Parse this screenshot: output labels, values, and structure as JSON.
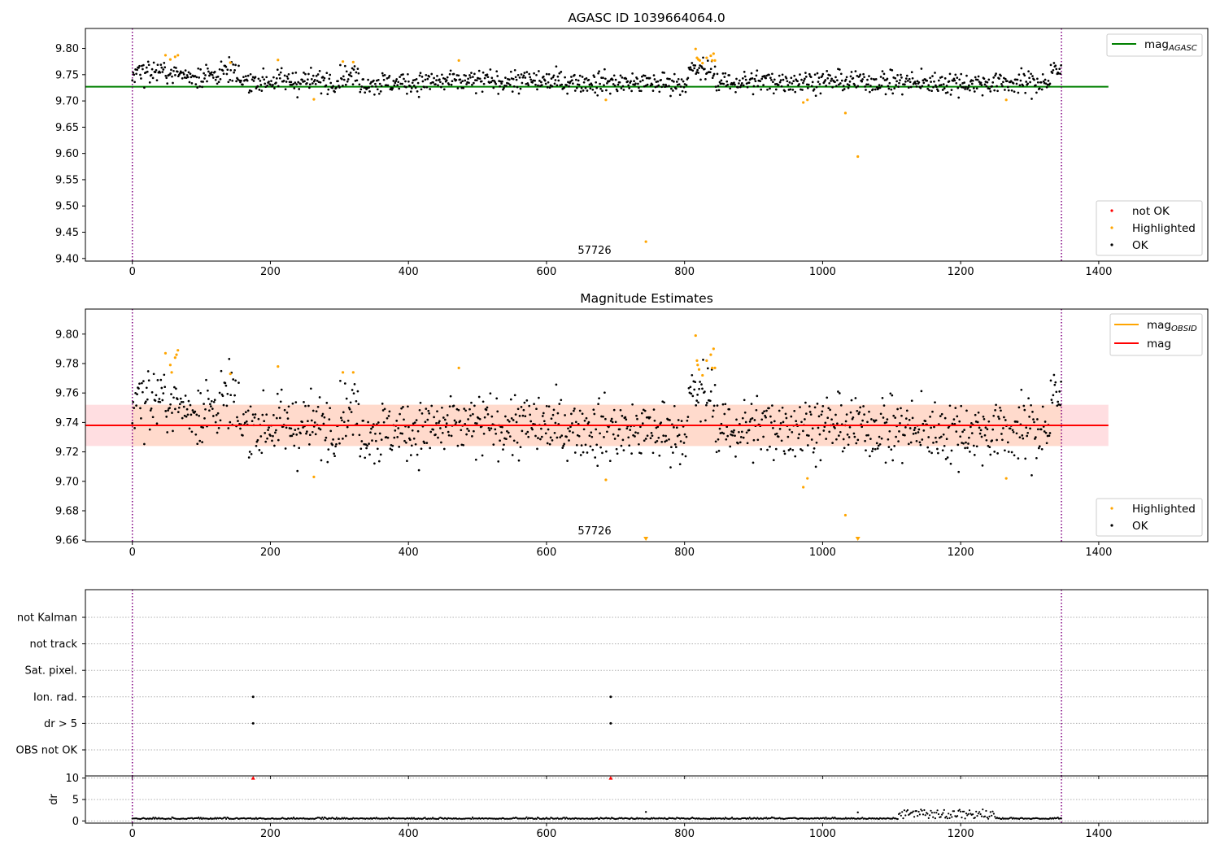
{
  "chart_data": [
    {
      "type": "scatter",
      "title": "AGASC ID 1039664064.0",
      "xlim": [
        -68,
        1558
      ],
      "ylim": [
        9.395,
        9.838
      ],
      "xticks": [
        0,
        200,
        400,
        600,
        800,
        1000,
        1200,
        1400
      ],
      "yticks": [
        "9.40",
        "9.45",
        "9.50",
        "9.55",
        "9.60",
        "9.65",
        "9.70",
        "9.75",
        "9.80"
      ],
      "obs_boundaries": [
        0,
        1346
      ],
      "hlines": [
        {
          "name": "mag_AGASC",
          "value": 9.727,
          "color": "#008000",
          "xrange": [
            -68,
            1414
          ]
        }
      ],
      "legend_lines": [
        {
          "label": "mag",
          "sub": "AGASC",
          "color": "#008000"
        }
      ],
      "legend_points": [
        {
          "label": "not OK",
          "color": "#ff0000"
        },
        {
          "label": "Highlighted",
          "color": "#ffa500"
        },
        {
          "label": "OK",
          "color": "#000000"
        }
      ],
      "annotation": {
        "text": "57726",
        "x": 640,
        "y": 9.412
      },
      "highlighted": [
        [
          48,
          9.787
        ],
        [
          55,
          9.779
        ],
        [
          62,
          9.784
        ],
        [
          66,
          9.787
        ],
        [
          142,
          9.773
        ],
        [
          211,
          9.778
        ],
        [
          263,
          9.703
        ],
        [
          305,
          9.775
        ],
        [
          320,
          9.774
        ],
        [
          473,
          9.777
        ],
        [
          686,
          9.702
        ],
        [
          744,
          9.432
        ],
        [
          816,
          9.799
        ],
        [
          818,
          9.782
        ],
        [
          820,
          9.779
        ],
        [
          822,
          9.777
        ],
        [
          826,
          9.772
        ],
        [
          832,
          9.782
        ],
        [
          838,
          9.786
        ],
        [
          842,
          9.79
        ],
        [
          840,
          9.777
        ],
        [
          844,
          9.777
        ],
        [
          972,
          9.697
        ],
        [
          978,
          9.702
        ],
        [
          1033,
          9.677
        ],
        [
          1051,
          9.594
        ],
        [
          1266,
          9.702
        ]
      ]
    },
    {
      "type": "scatter",
      "title": "Magnitude Estimates",
      "xlim": [
        -68,
        1558
      ],
      "ylim": [
        9.659,
        9.817
      ],
      "xticks": [
        0,
        200,
        400,
        600,
        800,
        1000,
        1200,
        1400
      ],
      "yticks": [
        "9.66",
        "9.68",
        "9.70",
        "9.72",
        "9.74",
        "9.76",
        "9.78",
        "9.80"
      ],
      "obs_boundaries": [
        0,
        1346
      ],
      "hlines": [
        {
          "name": "mag",
          "value": 9.738,
          "color": "#ff0000",
          "xrange": [
            -68,
            1414
          ]
        }
      ],
      "bands": [
        {
          "name": "mag band",
          "y0": 9.724,
          "y1": 9.752,
          "xrange": [
            -68,
            1414
          ],
          "color": "#ffd8dc"
        },
        {
          "name": "mag_OBSID band",
          "y0": 9.724,
          "y1": 9.752,
          "xrange": [
            0,
            1346
          ],
          "color": "#ffd9c8"
        }
      ],
      "legend_lines": [
        {
          "label": "mag",
          "sub": "OBSID",
          "color": "#ffa500"
        },
        {
          "label": "mag",
          "sub": "",
          "color": "#ff0000"
        }
      ],
      "legend_points": [
        {
          "label": "Highlighted",
          "color": "#ffa500"
        },
        {
          "label": "OK",
          "color": "#000000"
        }
      ],
      "annotation": {
        "text": "57726",
        "x": 640,
        "y": 9.665
      },
      "highlighted": [
        [
          48,
          9.787
        ],
        [
          55,
          9.779
        ],
        [
          57,
          9.774
        ],
        [
          62,
          9.784
        ],
        [
          64,
          9.786
        ],
        [
          66,
          9.789
        ],
        [
          142,
          9.773
        ],
        [
          211,
          9.778
        ],
        [
          263,
          9.703
        ],
        [
          305,
          9.774
        ],
        [
          320,
          9.774
        ],
        [
          473,
          9.777
        ],
        [
          686,
          9.701
        ],
        [
          816,
          9.799
        ],
        [
          818,
          9.782
        ],
        [
          819,
          9.779
        ],
        [
          821,
          9.776
        ],
        [
          826,
          9.772
        ],
        [
          832,
          9.782
        ],
        [
          838,
          9.786
        ],
        [
          842,
          9.79
        ],
        [
          840,
          9.777
        ],
        [
          844,
          9.777
        ],
        [
          972,
          9.696
        ],
        [
          978,
          9.702
        ],
        [
          1033,
          9.677
        ],
        [
          1266,
          9.702
        ]
      ],
      "offscale": [
        [
          744,
          9.66
        ],
        [
          1051,
          9.66
        ]
      ]
    },
    {
      "type": "scatter",
      "title": "",
      "xlim": [
        -68,
        1558
      ],
      "xticks": [
        0,
        200,
        400,
        600,
        800,
        1000,
        1200,
        1400
      ],
      "obs_boundaries": [
        0,
        1346
      ],
      "flag_rows": [
        "not Kalman",
        "not track",
        "Sat. pixel.",
        "Ion. rad.",
        "dr > 5",
        "OBS not OK"
      ],
      "flags": [
        {
          "row": "Ion. rad.",
          "x": 175
        },
        {
          "row": "Ion. rad.",
          "x": 693
        },
        {
          "row": "dr > 5",
          "x": 175
        },
        {
          "row": "dr > 5",
          "x": 693
        }
      ]
    },
    {
      "type": "scatter",
      "title": "",
      "ylabel": "dr",
      "xlim": [
        -68,
        1558
      ],
      "ylim": [
        -0.5,
        10.5
      ],
      "xticks": [
        0,
        200,
        400,
        600,
        800,
        1000,
        1200,
        1400
      ],
      "yticks": [
        "0",
        "5",
        "10"
      ],
      "obs_boundaries": [
        0,
        1346
      ],
      "clipped": [
        [
          175,
          10
        ],
        [
          693,
          10
        ]
      ],
      "outliers": [
        [
          744,
          2.1
        ],
        [
          1051,
          2.0
        ]
      ]
    }
  ],
  "colors": {
    "ok": "#000000",
    "highlighted": "#ffa500",
    "not_ok": "#ff0000",
    "obs_boundary": "#800080",
    "flag_grid": "#b0b0b0"
  }
}
